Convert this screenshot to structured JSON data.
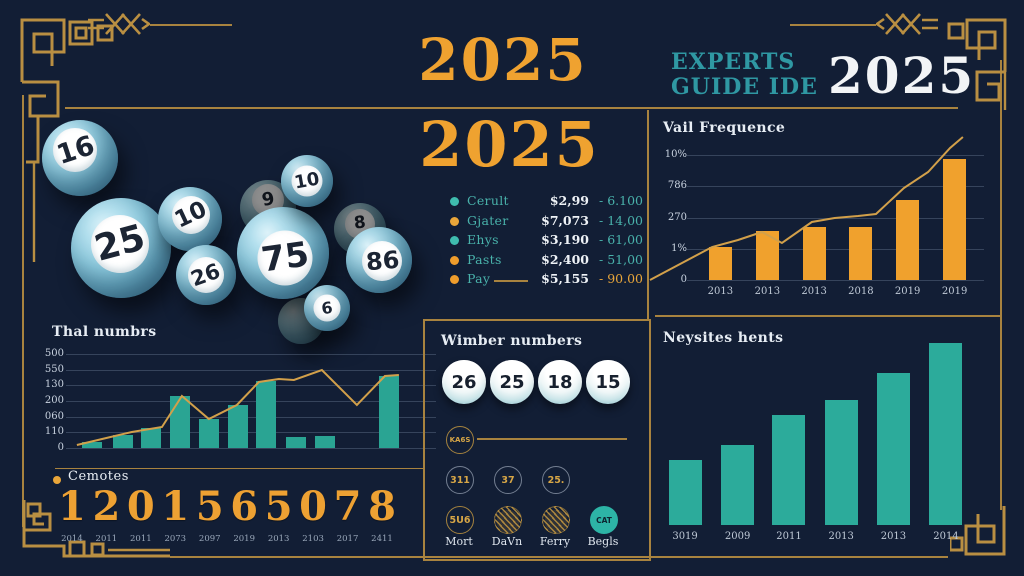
{
  "colors": {
    "background": "#121e35",
    "gold": "#eda133",
    "gold_line": "#a8833f",
    "teal_heading": "#2f98a3",
    "teal_legend": "#49b2ab",
    "bar_orange": "#f0a12d",
    "bar_teal": "#2aa493",
    "white": "#f2f4f6",
    "ball_blue": "#a8d8e7"
  },
  "header": {
    "year_center": "2025",
    "year_center_sub": "2025",
    "experts_line1": "EXPERTS",
    "experts_line2": "GUIDE IDE",
    "year_right": "2025"
  },
  "balls": {
    "main": [
      {
        "n": "16"
      },
      {
        "n": "25"
      },
      {
        "n": "10"
      },
      {
        "n": "26"
      },
      {
        "n": "75"
      },
      {
        "n": "10"
      },
      {
        "n": "86"
      },
      {
        "n": "6"
      }
    ],
    "back": [
      {
        "n": "9"
      },
      {
        "n": "8"
      },
      {
        "n": ""
      }
    ]
  },
  "legend": {
    "rows": [
      {
        "dot": "#3fbcae",
        "label": "Cerult",
        "value": "$2,99",
        "range": "- 6.100",
        "gold_range": false,
        "rule": false
      },
      {
        "dot": "#e9a63a",
        "label": "Gjater",
        "value": "$7,073",
        "range": "- 14,00",
        "gold_range": false,
        "rule": false
      },
      {
        "dot": "#3fbcae",
        "label": "Ehys",
        "value": "$3,190",
        "range": "- 61,00",
        "gold_range": false,
        "rule": false
      },
      {
        "dot": "#ef9d2c",
        "label": "Pasts",
        "value": "$2,400",
        "range": "- 51,00",
        "gold_range": false,
        "rule": false
      },
      {
        "dot": "#ef9d2c",
        "label": "Pay",
        "value": "$5,155",
        "range": "- 90.00",
        "gold_range": true,
        "rule": true
      }
    ]
  },
  "chart_data": [
    {
      "id": "vail_frequence",
      "type": "bar+line",
      "title": "Vail Frequence",
      "categories": [
        "2013",
        "2013",
        "2013",
        "2018",
        "2019",
        "2019"
      ],
      "bar_values": [
        2.6,
        3.9,
        4.2,
        4.2,
        6.4,
        9.7
      ],
      "bar_x": [
        0.089,
        0.254,
        0.418,
        0.582,
        0.746,
        0.911
      ],
      "ylim": [
        0,
        10
      ],
      "ytick_labels": [
        "10%",
        "786",
        "270",
        "1%",
        "0"
      ],
      "line": {
        "x": [
          -0.158,
          0.06,
          0.151,
          0.235,
          0.305,
          0.41,
          0.49,
          0.572,
          0.635,
          0.733,
          0.818,
          0.895,
          0.94
        ],
        "y": [
          0,
          2.64,
          3.2,
          3.84,
          2.96,
          4.64,
          4.96,
          5.12,
          5.28,
          7.36,
          8.64,
          10.56,
          11.44
        ]
      },
      "bar_color": "#f0a12d",
      "line_color": "#d2a04a"
    },
    {
      "id": "thal_numbers",
      "type": "bar+line",
      "title": "Thal numbrs",
      "categories": [],
      "bar_values": [
        6,
        13,
        20,
        52,
        29,
        43,
        67,
        11,
        12,
        72
      ],
      "bar_x": [
        0.057,
        0.146,
        0.226,
        0.309,
        0.391,
        0.474,
        0.554,
        0.64,
        0.723,
        0.906
      ],
      "ylim": [
        0,
        94
      ],
      "ytick_labels": [
        "500",
        "550",
        "130",
        "200",
        "060",
        "110",
        "0"
      ],
      "line": {
        "x": [
          0.014,
          0.086,
          0.171,
          0.257,
          0.314,
          0.391,
          0.471,
          0.534,
          0.591,
          0.634,
          0.714,
          0.814,
          0.894,
          0.934
        ],
        "y": [
          3,
          9,
          16,
          21,
          52,
          29,
          43,
          66,
          69,
          68,
          78,
          43,
          72,
          73
        ]
      },
      "bar_color": "#2aa493",
      "line_color": "#d2a04a"
    },
    {
      "id": "neysites",
      "type": "bar",
      "title": "Neysites hents",
      "categories": [
        "3019",
        "2009",
        "2011",
        "2013",
        "2013",
        "2014"
      ],
      "bar_values": [
        65,
        80,
        110,
        125,
        152,
        182
      ],
      "bar_x": [
        0.083,
        0.257,
        0.427,
        0.6,
        0.773,
        0.947
      ],
      "ylim": [
        0,
        190
      ],
      "bar_color": "#2cab9b"
    }
  ],
  "winner_panel": {
    "title": "Wimber numbers",
    "balls": [
      "26",
      "25",
      "18",
      "15"
    ],
    "badge": "KA6S",
    "row1": [
      "311",
      "37",
      "25."
    ],
    "row2_first": "5U6",
    "row2_last": "CAT",
    "labels": [
      "Mort",
      "DaVn",
      "Ferry",
      "Begls"
    ]
  },
  "comets": {
    "label": "Cemotes",
    "digits": [
      "1",
      "2",
      "0",
      "1",
      "5",
      "6",
      "5",
      "0",
      "7",
      "8"
    ],
    "years": [
      "2014",
      "2011",
      "2011",
      "2073",
      "2097",
      "2019",
      "2013",
      "2103",
      "2017",
      "2411"
    ]
  }
}
